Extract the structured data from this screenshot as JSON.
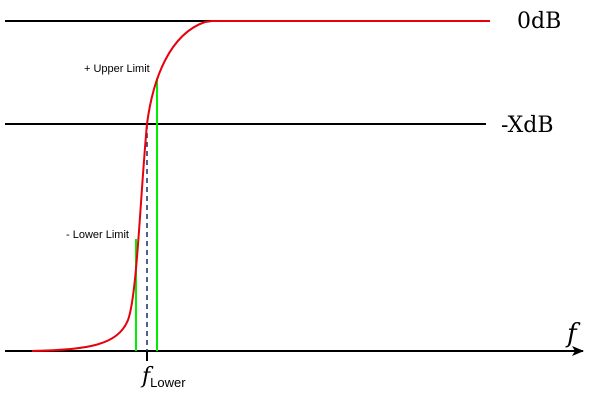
{
  "labels": {
    "level_top": "0dB",
    "level_mid": "-XdB",
    "upper_limit": "+ Upper Limit",
    "lower_limit": "- Lower Limit",
    "axis_symbol": "f",
    "cutoff_main": "f",
    "cutoff_sub": "Lower"
  },
  "colors": {
    "curve": "#e8000b",
    "limit_lines": "#00ee00",
    "cutoff_dash": "#1a2a6c",
    "reference_lines": "#000000",
    "axis": "#000000"
  }
}
